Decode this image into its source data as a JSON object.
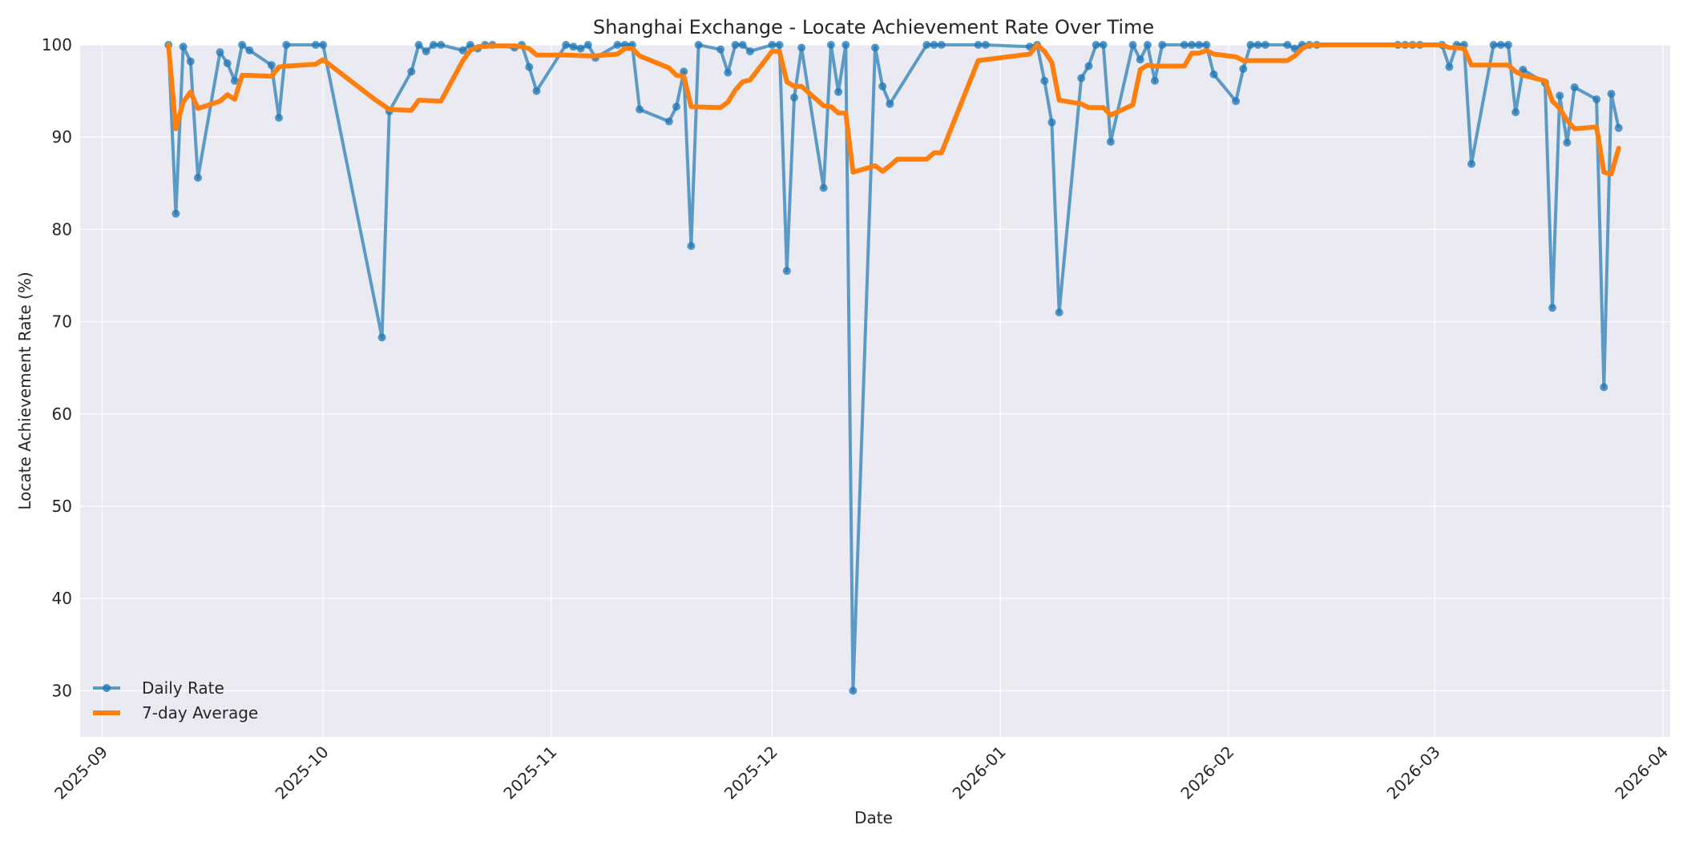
{
  "chart_data": {
    "type": "line",
    "title": "Shanghai Exchange - Locate Achievement Rate Over Time",
    "xlabel": "Date",
    "ylabel": "Locate Achievement Rate (%)",
    "ylim": [
      25,
      100
    ],
    "xlim": [
      "2025-08-29",
      "2026-04-02"
    ],
    "yticks": [
      30,
      40,
      50,
      60,
      70,
      80,
      90,
      100
    ],
    "xticks": [
      "2025-09",
      "2025-10",
      "2025-11",
      "2025-12",
      "2026-01",
      "2026-02",
      "2026-03",
      "2026-04"
    ],
    "xtick_dates": [
      "2025-09-01",
      "2025-10-01",
      "2025-11-01",
      "2025-12-01",
      "2026-01-01",
      "2026-02-01",
      "2026-03-01",
      "2026-04-01"
    ],
    "grid": true,
    "legend_position": "lower left",
    "colors": {
      "daily": "#1f77b4",
      "avg": "#ff7f0e",
      "plot_bg": "#eaeaf2",
      "grid": "#ffffff"
    },
    "series": [
      {
        "name": "Daily Rate",
        "style": "line+marker",
        "points": [
          [
            "2025-09-10",
            100.0
          ],
          [
            "2025-09-11",
            81.7
          ],
          [
            "2025-09-12",
            99.8
          ],
          [
            "2025-09-13",
            98.2
          ],
          [
            "2025-09-14",
            85.6
          ],
          [
            "2025-09-17",
            99.2
          ],
          [
            "2025-09-18",
            98.0
          ],
          [
            "2025-09-19",
            96.1
          ],
          [
            "2025-09-20",
            100.0
          ],
          [
            "2025-09-21",
            99.4
          ],
          [
            "2025-09-24",
            97.8
          ],
          [
            "2025-09-25",
            92.1
          ],
          [
            "2025-09-26",
            100.0
          ],
          [
            "2025-09-30",
            100.0
          ],
          [
            "2025-10-01",
            100.0
          ],
          [
            "2025-10-09",
            68.3
          ],
          [
            "2025-10-10",
            92.8
          ],
          [
            "2025-10-13",
            97.1
          ],
          [
            "2025-10-14",
            100.0
          ],
          [
            "2025-10-15",
            99.3
          ],
          [
            "2025-10-16",
            100.0
          ],
          [
            "2025-10-17",
            100.0
          ],
          [
            "2025-10-20",
            99.4
          ],
          [
            "2025-10-21",
            100.0
          ],
          [
            "2025-10-22",
            99.6
          ],
          [
            "2025-10-23",
            100.0
          ],
          [
            "2025-10-24",
            100.0
          ],
          [
            "2025-10-27",
            99.7
          ],
          [
            "2025-10-28",
            100.0
          ],
          [
            "2025-10-29",
            97.6
          ],
          [
            "2025-10-30",
            95.0
          ],
          [
            "2025-11-03",
            100.0
          ],
          [
            "2025-11-04",
            99.8
          ],
          [
            "2025-11-05",
            99.6
          ],
          [
            "2025-11-06",
            100.0
          ],
          [
            "2025-11-07",
            98.6
          ],
          [
            "2025-11-10",
            100.0
          ],
          [
            "2025-11-11",
            100.0
          ],
          [
            "2025-11-12",
            100.0
          ],
          [
            "2025-11-13",
            93.0
          ],
          [
            "2025-11-17",
            91.7
          ],
          [
            "2025-11-18",
            93.3
          ],
          [
            "2025-11-19",
            97.1
          ],
          [
            "2025-11-20",
            78.2
          ],
          [
            "2025-11-21",
            100.0
          ],
          [
            "2025-11-24",
            99.5
          ],
          [
            "2025-11-25",
            97.0
          ],
          [
            "2025-11-26",
            100.0
          ],
          [
            "2025-11-27",
            100.0
          ],
          [
            "2025-11-28",
            99.3
          ],
          [
            "2025-12-01",
            100.0
          ],
          [
            "2025-12-02",
            100.0
          ],
          [
            "2025-12-03",
            75.5
          ],
          [
            "2025-12-04",
            94.3
          ],
          [
            "2025-12-05",
            99.7
          ],
          [
            "2025-12-08",
            84.5
          ],
          [
            "2025-12-09",
            100.0
          ],
          [
            "2025-12-10",
            94.9
          ],
          [
            "2025-12-11",
            100.0
          ],
          [
            "2025-12-12",
            30.0
          ],
          [
            "2025-12-15",
            99.7
          ],
          [
            "2025-12-16",
            95.5
          ],
          [
            "2025-12-17",
            93.6
          ],
          [
            "2025-12-22",
            100.0
          ],
          [
            "2025-12-23",
            100.0
          ],
          [
            "2025-12-24",
            100.0
          ],
          [
            "2025-12-29",
            100.0
          ],
          [
            "2025-12-30",
            100.0
          ],
          [
            "2026-01-05",
            99.8
          ],
          [
            "2026-01-06",
            100.0
          ],
          [
            "2026-01-07",
            96.1
          ],
          [
            "2026-01-08",
            91.6
          ],
          [
            "2026-01-09",
            71.0
          ],
          [
            "2026-01-12",
            96.4
          ],
          [
            "2026-01-13",
            97.7
          ],
          [
            "2026-01-14",
            100.0
          ],
          [
            "2026-01-15",
            100.0
          ],
          [
            "2026-01-16",
            89.5
          ],
          [
            "2026-01-19",
            100.0
          ],
          [
            "2026-01-20",
            98.4
          ],
          [
            "2026-01-21",
            100.0
          ],
          [
            "2026-01-22",
            96.1
          ],
          [
            "2026-01-23",
            100.0
          ],
          [
            "2026-01-26",
            100.0
          ],
          [
            "2026-01-27",
            100.0
          ],
          [
            "2026-01-28",
            100.0
          ],
          [
            "2026-01-29",
            100.0
          ],
          [
            "2026-01-30",
            96.8
          ],
          [
            "2026-02-02",
            93.9
          ],
          [
            "2026-02-03",
            97.4
          ],
          [
            "2026-02-04",
            100.0
          ],
          [
            "2026-02-05",
            100.0
          ],
          [
            "2026-02-06",
            100.0
          ],
          [
            "2026-02-09",
            100.0
          ],
          [
            "2026-02-10",
            99.6
          ],
          [
            "2026-02-11",
            100.0
          ],
          [
            "2026-02-12",
            100.0
          ],
          [
            "2026-02-13",
            100.0
          ],
          [
            "2026-02-24",
            100.0
          ],
          [
            "2026-02-25",
            100.0
          ],
          [
            "2026-02-26",
            100.0
          ],
          [
            "2026-02-27",
            100.0
          ],
          [
            "2026-03-02",
            100.0
          ],
          [
            "2026-03-03",
            97.6
          ],
          [
            "2026-03-04",
            100.0
          ],
          [
            "2026-03-05",
            100.0
          ],
          [
            "2026-03-06",
            87.1
          ],
          [
            "2026-03-09",
            100.0
          ],
          [
            "2026-03-10",
            100.0
          ],
          [
            "2026-03-11",
            100.0
          ],
          [
            "2026-03-12",
            92.7
          ],
          [
            "2026-03-13",
            97.3
          ],
          [
            "2026-03-16",
            95.9
          ],
          [
            "2026-03-17",
            71.5
          ],
          [
            "2026-03-18",
            94.5
          ],
          [
            "2026-03-19",
            89.4
          ],
          [
            "2026-03-20",
            95.4
          ],
          [
            "2026-03-23",
            94.1
          ],
          [
            "2026-03-24",
            62.9
          ],
          [
            "2026-03-25",
            94.7
          ],
          [
            "2026-03-26",
            91.0
          ]
        ]
      },
      {
        "name": "7-day Average",
        "style": "line",
        "points": [
          [
            "2025-09-10",
            100.0
          ],
          [
            "2025-09-11",
            90.9
          ],
          [
            "2025-09-12",
            93.8
          ],
          [
            "2025-09-13",
            94.9
          ],
          [
            "2025-09-14",
            93.1
          ],
          [
            "2025-09-17",
            93.9
          ],
          [
            "2025-09-18",
            94.6
          ],
          [
            "2025-09-19",
            94.1
          ],
          [
            "2025-09-20",
            96.7
          ],
          [
            "2025-09-21",
            96.7
          ],
          [
            "2025-09-24",
            96.6
          ],
          [
            "2025-09-25",
            97.6
          ],
          [
            "2025-09-26",
            97.7
          ],
          [
            "2025-09-30",
            97.9
          ],
          [
            "2025-10-01",
            98.4
          ],
          [
            "2025-10-08",
            94.1
          ],
          [
            "2025-10-10",
            93.0
          ],
          [
            "2025-10-13",
            92.9
          ],
          [
            "2025-10-14",
            94.0
          ],
          [
            "2025-10-17",
            93.9
          ],
          [
            "2025-10-20",
            98.3
          ],
          [
            "2025-10-21",
            99.4
          ],
          [
            "2025-10-22",
            99.8
          ],
          [
            "2025-10-24",
            99.9
          ],
          [
            "2025-10-27",
            99.9
          ],
          [
            "2025-10-28",
            99.8
          ],
          [
            "2025-10-29",
            99.6
          ],
          [
            "2025-10-30",
            98.9
          ],
          [
            "2025-11-03",
            98.9
          ],
          [
            "2025-11-06",
            98.8
          ],
          [
            "2025-11-07",
            98.8
          ],
          [
            "2025-11-10",
            99.0
          ],
          [
            "2025-11-11",
            99.6
          ],
          [
            "2025-11-12",
            99.6
          ],
          [
            "2025-11-13",
            98.8
          ],
          [
            "2025-11-17",
            97.5
          ],
          [
            "2025-11-18",
            96.7
          ],
          [
            "2025-11-19",
            96.6
          ],
          [
            "2025-11-20",
            93.3
          ],
          [
            "2025-11-24",
            93.2
          ],
          [
            "2025-11-25",
            93.8
          ],
          [
            "2025-11-26",
            95.1
          ],
          [
            "2025-11-27",
            96.0
          ],
          [
            "2025-11-28",
            96.2
          ],
          [
            "2025-12-01",
            99.3
          ],
          [
            "2025-12-02",
            99.3
          ],
          [
            "2025-12-03",
            96.0
          ],
          [
            "2025-12-04",
            95.5
          ],
          [
            "2025-12-05",
            95.5
          ],
          [
            "2025-12-08",
            93.4
          ],
          [
            "2025-12-09",
            93.3
          ],
          [
            "2025-12-10",
            92.6
          ],
          [
            "2025-12-11",
            92.6
          ],
          [
            "2025-12-12",
            86.2
          ],
          [
            "2025-12-15",
            86.9
          ],
          [
            "2025-12-16",
            86.3
          ],
          [
            "2025-12-17",
            86.9
          ],
          [
            "2025-12-18",
            87.6
          ],
          [
            "2025-12-22",
            87.6
          ],
          [
            "2025-12-23",
            88.3
          ],
          [
            "2025-12-24",
            88.3
          ],
          [
            "2025-12-29",
            98.3
          ],
          [
            "2026-01-05",
            99.0
          ],
          [
            "2026-01-06",
            100.0
          ],
          [
            "2026-01-07",
            99.3
          ],
          [
            "2026-01-08",
            98.1
          ],
          [
            "2026-01-09",
            94.0
          ],
          [
            "2026-01-12",
            93.6
          ],
          [
            "2026-01-13",
            93.2
          ],
          [
            "2026-01-15",
            93.2
          ],
          [
            "2026-01-16",
            92.4
          ],
          [
            "2026-01-19",
            93.5
          ],
          [
            "2026-01-20",
            97.3
          ],
          [
            "2026-01-21",
            97.8
          ],
          [
            "2026-01-22",
            97.7
          ],
          [
            "2026-01-26",
            97.7
          ],
          [
            "2026-01-27",
            99.1
          ],
          [
            "2026-01-28",
            99.1
          ],
          [
            "2026-01-29",
            99.4
          ],
          [
            "2026-01-30",
            99.0
          ],
          [
            "2026-02-02",
            98.7
          ],
          [
            "2026-02-03",
            98.3
          ],
          [
            "2026-02-09",
            98.3
          ],
          [
            "2026-02-10",
            98.8
          ],
          [
            "2026-02-11",
            99.6
          ],
          [
            "2026-02-12",
            100.0
          ],
          [
            "2026-02-27",
            100.0
          ],
          [
            "2026-03-02",
            100.0
          ],
          [
            "2026-03-03",
            99.7
          ],
          [
            "2026-03-04",
            99.7
          ],
          [
            "2026-03-05",
            99.6
          ],
          [
            "2026-03-06",
            97.8
          ],
          [
            "2026-03-11",
            97.8
          ],
          [
            "2026-03-12",
            97.1
          ],
          [
            "2026-03-13",
            96.7
          ],
          [
            "2026-03-16",
            96.1
          ],
          [
            "2026-03-17",
            93.9
          ],
          [
            "2026-03-18",
            93.1
          ],
          [
            "2026-03-19",
            91.8
          ],
          [
            "2026-03-20",
            90.9
          ],
          [
            "2026-03-23",
            91.1
          ],
          [
            "2026-03-24",
            86.2
          ],
          [
            "2026-03-25",
            86.0
          ],
          [
            "2026-03-26",
            88.8
          ]
        ]
      }
    ]
  }
}
